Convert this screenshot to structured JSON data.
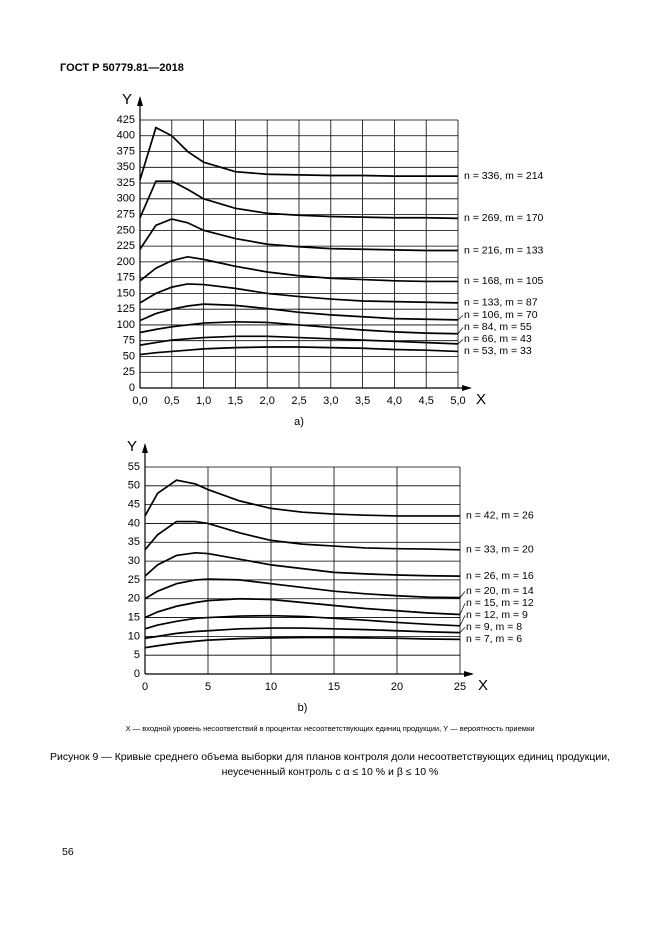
{
  "document": {
    "header": "ГОСТ Р 50779.81—2018",
    "note": "X — входной уровень несоответствий в процентах несоответствующих единиц продукции, Y — вероятность приемки",
    "caption": [
      "Рисунок 9 — Кривые среднего объема выборки для планов контроля доли несоответствующих единиц продукции,",
      "неусеченный контроль с α ≤ 10 % и β ≤ 10 %"
    ],
    "page_number": "56"
  },
  "chart_data": [
    {
      "type": "line",
      "label": "a)",
      "x_label": "X",
      "y_label": "Y",
      "grid": true,
      "color": "#000000",
      "x": [
        0,
        0.25,
        0.5,
        0.75,
        1,
        1.5,
        2,
        2.5,
        3,
        3.5,
        4,
        4.5,
        5
      ],
      "xlim": [
        0,
        5
      ],
      "ylim": [
        0,
        425
      ],
      "xticks": [
        {
          "value": 0,
          "label": "0,0"
        },
        {
          "value": 0.5,
          "label": "0,5"
        },
        {
          "value": 1,
          "label": "1,0"
        },
        {
          "value": 1.5,
          "label": "1,5"
        },
        {
          "value": 2,
          "label": "2,0"
        },
        {
          "value": 2.5,
          "label": "2,5"
        },
        {
          "value": 3,
          "label": "3,0"
        },
        {
          "value": 3.5,
          "label": "3,5"
        },
        {
          "value": 4,
          "label": "4,0"
        },
        {
          "value": 4.5,
          "label": "4,5"
        },
        {
          "value": 5,
          "label": "5,0"
        }
      ],
      "yticks": [
        0,
        25,
        50,
        75,
        100,
        125,
        150,
        175,
        200,
        225,
        250,
        275,
        300,
        325,
        350,
        375,
        400,
        425
      ],
      "series": [
        {
          "name": "n = 336, m = 214",
          "values": [
            330,
            413,
            400,
            375,
            358,
            343,
            339,
            338,
            337,
            337,
            336,
            336,
            336
          ]
        },
        {
          "name": "n = 269, m = 170",
          "values": [
            270,
            328,
            328,
            315,
            300,
            285,
            277,
            274,
            272,
            271,
            270,
            270,
            269
          ]
        },
        {
          "name": "n = 216, m = 133",
          "values": [
            220,
            258,
            268,
            262,
            250,
            237,
            228,
            224,
            221,
            220,
            219,
            218,
            218
          ]
        },
        {
          "name": "n = 168, m = 105",
          "values": [
            170,
            190,
            202,
            208,
            204,
            193,
            184,
            178,
            174,
            172,
            170,
            169,
            169
          ]
        },
        {
          "name": "n = 133, m = 87",
          "values": [
            135,
            150,
            160,
            165,
            164,
            158,
            150,
            145,
            141,
            138,
            137,
            136,
            135
          ]
        },
        {
          "name": "n = 106, m = 70",
          "values": [
            107,
            118,
            125,
            130,
            133,
            131,
            126,
            120,
            116,
            113,
            110,
            109,
            108
          ]
        },
        {
          "name": "n = 84, m = 55",
          "values": [
            88,
            93,
            97,
            100,
            103,
            105,
            104,
            100,
            96,
            92,
            89,
            87,
            86
          ]
        },
        {
          "name": "n = 66, m = 43",
          "values": [
            68,
            72,
            76,
            78,
            80,
            82,
            82,
            80,
            78,
            76,
            74,
            72,
            70
          ]
        },
        {
          "name": "n = 53, m = 33",
          "values": [
            53,
            56,
            58,
            60,
            62,
            64,
            65,
            65,
            64,
            63,
            61,
            60,
            58
          ]
        }
      ]
    },
    {
      "type": "line",
      "label": "b)",
      "x_label": "X",
      "y_label": "Y",
      "grid": true,
      "color": "#000000",
      "x": [
        0,
        1,
        2.5,
        4,
        5,
        7.5,
        10,
        12.5,
        15,
        17.5,
        20,
        22.5,
        25
      ],
      "xlim": [
        0,
        25
      ],
      "ylim": [
        0,
        55
      ],
      "xticks": [
        0,
        5,
        10,
        15,
        20,
        25
      ],
      "yticks": [
        0,
        5,
        10,
        15,
        20,
        25,
        30,
        35,
        40,
        45,
        50,
        55
      ],
      "series": [
        {
          "name": "n = 42, m = 26",
          "values": [
            42,
            48,
            51.5,
            50.5,
            49,
            46,
            44,
            43,
            42.5,
            42.2,
            42,
            42,
            42
          ]
        },
        {
          "name": "n = 33, m = 20",
          "values": [
            33,
            37,
            40.5,
            40.5,
            40,
            37.5,
            35.5,
            34.5,
            34,
            33.5,
            33.3,
            33.2,
            33
          ]
        },
        {
          "name": "n = 26, m = 16",
          "values": [
            26,
            29,
            31.5,
            32.2,
            32,
            30.5,
            29,
            28,
            27,
            26.6,
            26.3,
            26.1,
            26
          ]
        },
        {
          "name": "n = 20, m = 14",
          "values": [
            20,
            22,
            24,
            25,
            25.2,
            25,
            24,
            23,
            22,
            21.3,
            20.8,
            20.4,
            20.3
          ]
        },
        {
          "name": "n = 15, m = 12",
          "values": [
            15,
            16.5,
            18,
            19,
            19.5,
            20,
            19.8,
            19,
            18.2,
            17.4,
            16.8,
            16.2,
            15.8
          ]
        },
        {
          "name": "n = 12, m = 9",
          "values": [
            12,
            13,
            14,
            14.8,
            15,
            15.4,
            15.5,
            15.3,
            14.8,
            14.3,
            13.7,
            13.2,
            12.8
          ]
        },
        {
          "name": "n = 9, m = 8",
          "values": [
            9.5,
            10,
            10.8,
            11.3,
            11.5,
            12,
            12.2,
            12.2,
            12,
            11.8,
            11.5,
            11.2,
            11
          ]
        },
        {
          "name": "n = 7, m = 6",
          "values": [
            7,
            7.5,
            8.2,
            8.7,
            9,
            9.4,
            9.6,
            9.7,
            9.7,
            9.6,
            9.5,
            9.3,
            9.2
          ]
        }
      ]
    }
  ]
}
